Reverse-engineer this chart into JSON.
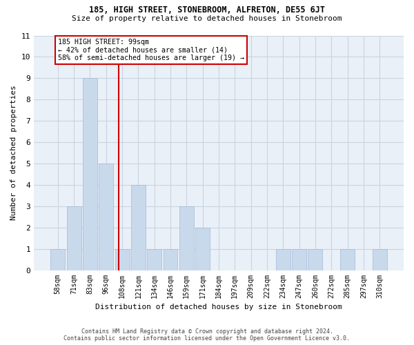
{
  "title": "185, HIGH STREET, STONEBROOM, ALFRETON, DE55 6JT",
  "subtitle": "Size of property relative to detached houses in Stonebroom",
  "xlabel": "Distribution of detached houses by size in Stonebroom",
  "ylabel": "Number of detached properties",
  "footer_line1": "Contains HM Land Registry data © Crown copyright and database right 2024.",
  "footer_line2": "Contains public sector information licensed under the Open Government Licence v3.0.",
  "categories": [
    "58sqm",
    "71sqm",
    "83sqm",
    "96sqm",
    "108sqm",
    "121sqm",
    "134sqm",
    "146sqm",
    "159sqm",
    "171sqm",
    "184sqm",
    "197sqm",
    "209sqm",
    "222sqm",
    "234sqm",
    "247sqm",
    "260sqm",
    "272sqm",
    "285sqm",
    "297sqm",
    "310sqm"
  ],
  "values": [
    1,
    3,
    9,
    5,
    1,
    4,
    1,
    1,
    3,
    2,
    0,
    0,
    0,
    0,
    1,
    1,
    1,
    0,
    1,
    0,
    1
  ],
  "bar_color": "#c9d9ec",
  "bar_edgecolor": "#a0b8d8",
  "grid_color": "#c8d4e0",
  "background_color": "#eaf0f7",
  "vline_x": 3.77,
  "vline_color": "#cc0000",
  "annotation_text": "185 HIGH STREET: 99sqm\n← 42% of detached houses are smaller (14)\n58% of semi-detached houses are larger (19) →",
  "annotation_box_color": "#ffffff",
  "annotation_box_edgecolor": "#cc0000",
  "ylim": [
    0,
    11
  ],
  "yticks": [
    0,
    1,
    2,
    3,
    4,
    5,
    6,
    7,
    8,
    9,
    10,
    11
  ]
}
